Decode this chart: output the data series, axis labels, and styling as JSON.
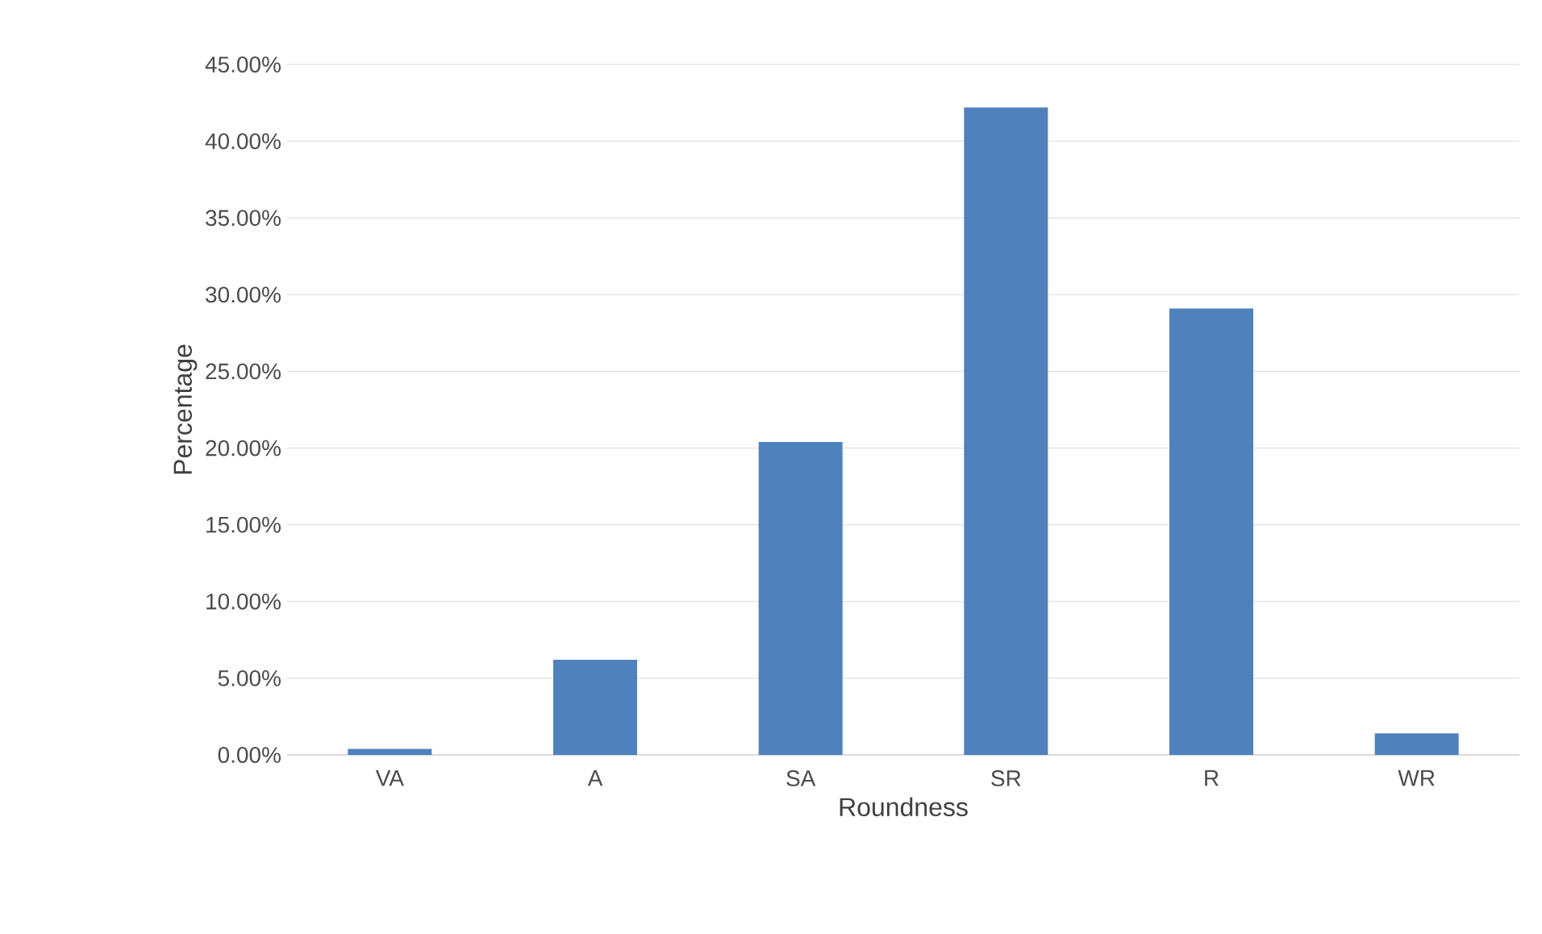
{
  "chart_data": {
    "type": "bar",
    "xlabel": "Roundness",
    "ylabel": "Percentage",
    "categories": [
      "VA",
      "A",
      "SA",
      "SR",
      "R",
      "WR"
    ],
    "values": [
      0.4,
      6.2,
      20.4,
      42.2,
      29.1,
      1.4
    ],
    "color": "#4f81bd",
    "ylim": [
      0,
      45
    ],
    "yticks": [
      {
        "value": 0,
        "label": "0.00%"
      },
      {
        "value": 5,
        "label": "5.00%"
      },
      {
        "value": 10,
        "label": "10.00%"
      },
      {
        "value": 15,
        "label": "15.00%"
      },
      {
        "value": 20,
        "label": "20.00%"
      },
      {
        "value": 25,
        "label": "25.00%"
      },
      {
        "value": 30,
        "label": "30.00%"
      },
      {
        "value": 35,
        "label": "35.00%"
      },
      {
        "value": 40,
        "label": "40.00%"
      },
      {
        "value": 45,
        "label": "45.00%"
      }
    ],
    "grid": "y"
  }
}
